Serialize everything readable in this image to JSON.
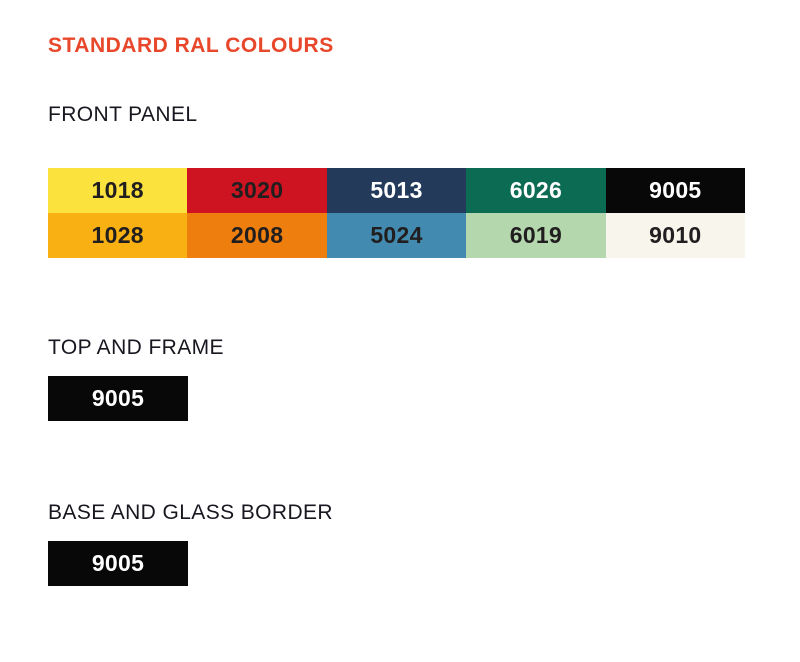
{
  "title": {
    "text": "STANDARD RAL COLOURS",
    "color": "#e8472b"
  },
  "colors": {
    "page_bg": "#ffffff",
    "heading_text": "#17171f",
    "dark_label": "#211e1f",
    "light_label": "#ffffff"
  },
  "front_panel": {
    "heading": "FRONT PANEL",
    "rows": [
      [
        {
          "code": "1018",
          "bg": "#fbe23d",
          "fg": "#211e1f"
        },
        {
          "code": "3020",
          "bg": "#cd1420",
          "fg": "#211e1f"
        },
        {
          "code": "5013",
          "bg": "#233a5b",
          "fg": "#ffffff"
        },
        {
          "code": "6026",
          "bg": "#0c6b53",
          "fg": "#ffffff"
        },
        {
          "code": "9005",
          "bg": "#080808",
          "fg": "#ffffff"
        }
      ],
      [
        {
          "code": "1028",
          "bg": "#f8b013",
          "fg": "#211e1f"
        },
        {
          "code": "2008",
          "bg": "#ee7e0e",
          "fg": "#211e1f"
        },
        {
          "code": "5024",
          "bg": "#428aaf",
          "fg": "#211e1f"
        },
        {
          "code": "6019",
          "bg": "#b5d7ae",
          "fg": "#211e1f"
        },
        {
          "code": "9010",
          "bg": "#f7f5ec",
          "fg": "#211e1f"
        }
      ]
    ]
  },
  "top_and_frame": {
    "heading": "TOP AND FRAME",
    "swatch": {
      "code": "9005",
      "bg": "#080808",
      "fg": "#ffffff"
    }
  },
  "base_and_glass_border": {
    "heading": "BASE AND GLASS BORDER",
    "swatch": {
      "code": "9005",
      "bg": "#080808",
      "fg": "#ffffff"
    }
  }
}
